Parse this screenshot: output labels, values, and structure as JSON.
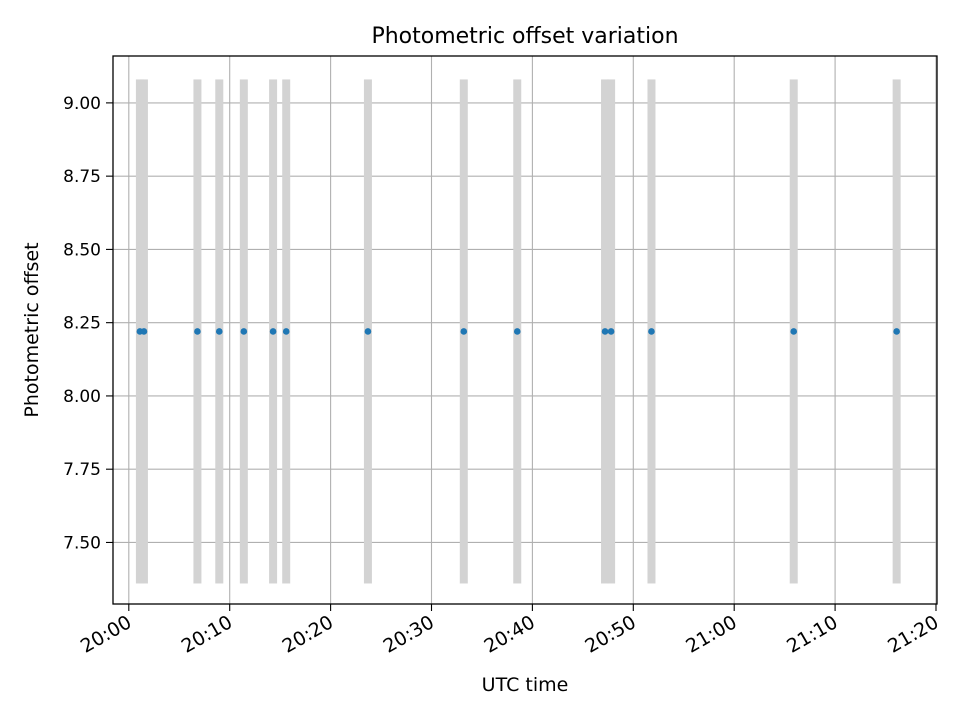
{
  "chart_data": {
    "type": "scatter",
    "title": "Photometric offset variation",
    "xlabel": "UTC time",
    "ylabel": "Photometric offset",
    "x_axis_type": "time",
    "xlim": [
      "19:58:26",
      "21:20:06"
    ],
    "ylim": [
      7.29,
      9.16
    ],
    "x_ticks": [
      "20:00",
      "20:10",
      "20:20",
      "20:30",
      "20:40",
      "20:50",
      "21:00",
      "21:10",
      "21:20"
    ],
    "y_ticks": [
      7.5,
      7.75,
      8.0,
      8.25,
      8.5,
      8.75,
      9.0
    ],
    "grid": true,
    "legend": "none",
    "colors": {
      "points": "#1f77b4",
      "bands": "#d3d3d3",
      "grid": "#b0b0b0"
    },
    "bands": {
      "y_range": [
        7.36,
        9.08
      ],
      "x": [
        "20:01:06",
        "20:01:30",
        "20:06:48",
        "20:08:58",
        "20:11:24",
        "20:14:18",
        "20:15:36",
        "20:23:42",
        "20:33:12",
        "20:38:30",
        "20:47:12",
        "20:47:48",
        "20:51:48",
        "21:05:54",
        "21:16:06"
      ]
    },
    "points": {
      "x": [
        "20:01:06",
        "20:01:30",
        "20:06:48",
        "20:08:58",
        "20:11:24",
        "20:14:18",
        "20:15:36",
        "20:23:42",
        "20:33:12",
        "20:38:30",
        "20:47:12",
        "20:47:48",
        "20:51:48",
        "21:05:54",
        "21:16:06"
      ],
      "y": [
        8.22,
        8.22,
        8.22,
        8.22,
        8.22,
        8.22,
        8.22,
        8.22,
        8.22,
        8.22,
        8.22,
        8.22,
        8.22,
        8.22,
        8.22
      ]
    }
  }
}
